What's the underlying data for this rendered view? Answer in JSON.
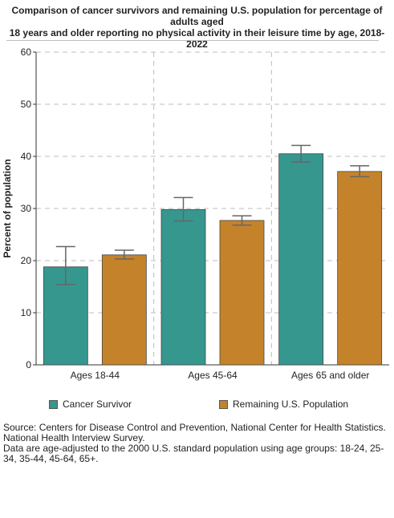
{
  "chart_data": {
    "type": "bar",
    "title_lines": [
      "Comparison of cancer survivors and remaining U.S. population for percentage of adults aged",
      "18 years and older reporting no physical activity in their leisure time by age,  2018-2022"
    ],
    "ylabel": "Percent of population",
    "xlabel": "",
    "ylim": [
      0,
      60
    ],
    "yticks": [
      0,
      10,
      20,
      30,
      40,
      50,
      60
    ],
    "categories": [
      "Ages 18-44",
      "Ages 45-64",
      "Ages 65 and older"
    ],
    "series": [
      {
        "name": "Cancer Survivor",
        "color": "#36978f",
        "values": [
          18.8,
          29.8,
          40.5
        ],
        "ci_low": [
          15.4,
          27.6,
          38.9
        ],
        "ci_high": [
          22.7,
          32.1,
          42.1
        ]
      },
      {
        "name": "Remaining U.S. Population",
        "color": "#c4832b",
        "values": [
          21.1,
          27.7,
          37.1
        ],
        "ci_low": [
          20.3,
          26.8,
          36.1
        ],
        "ci_high": [
          22.0,
          28.6,
          38.2
        ]
      }
    ],
    "grid": true,
    "legend_position": "bottom"
  },
  "footer": {
    "source": "Source: Centers for Disease Control and Prevention, National Center for Health Statistics. National Health Interview Survey.",
    "note": "Data are age-adjusted to the 2000 U.S. standard population using age groups: 18-24, 25-34, 35-44, 45-64, 65+."
  }
}
